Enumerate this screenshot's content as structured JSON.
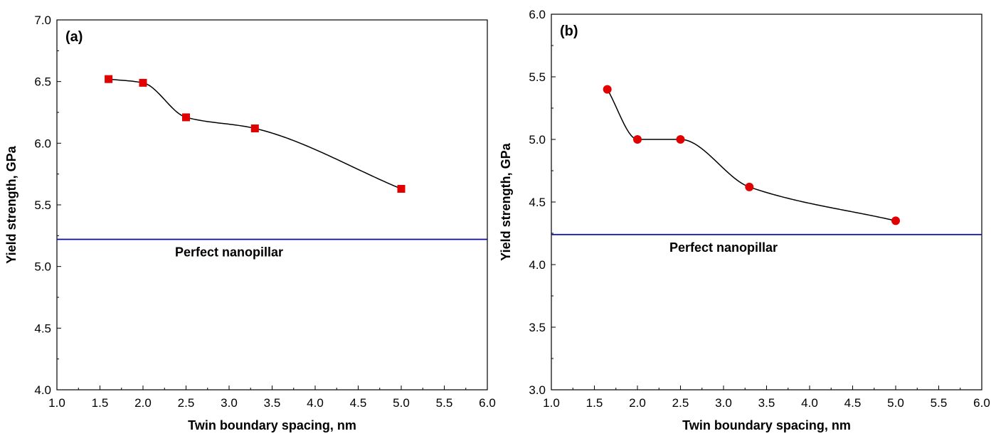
{
  "chart_data": [
    {
      "type": "scatter",
      "panel_label": "(a)",
      "xlabel": "Twin boundary spacing, nm",
      "ylabel": "Yield strength, GPa",
      "xlim": [
        1.0,
        6.0
      ],
      "ylim": [
        4.0,
        7.0
      ],
      "xticks": [
        "1.0",
        "1.5",
        "2.0",
        "2.5",
        "3.0",
        "3.5",
        "4.0",
        "4.5",
        "5.0",
        "5.5",
        "6.0"
      ],
      "yticks": [
        "4.0",
        "4.5",
        "5.0",
        "5.5",
        "6.0",
        "6.5",
        "7.0"
      ],
      "grid": false,
      "marker": "square",
      "marker_color": "#e00000",
      "fit_color": "#000000",
      "series": [
        {
          "x": [
            1.6,
            2.0,
            2.5,
            3.3,
            5.0
          ],
          "y": [
            6.52,
            6.49,
            6.21,
            6.12,
            5.63
          ]
        }
      ],
      "reference_line": {
        "y": 5.22,
        "label": "Perfect nanopillar",
        "color": "#0a0aa0"
      }
    },
    {
      "type": "scatter",
      "panel_label": "(b)",
      "xlabel": "Twin boundary spacing, nm",
      "ylabel": "Yield strength, GPa",
      "xlim": [
        1.0,
        6.0
      ],
      "ylim": [
        3.0,
        6.0
      ],
      "xticks": [
        "1.0",
        "1.5",
        "2.0",
        "2.5",
        "3.0",
        "3.5",
        "4.0",
        "4.5",
        "5.0",
        "5.5",
        "6.0"
      ],
      "yticks": [
        "3.0",
        "3.5",
        "4.0",
        "4.5",
        "5.0",
        "5.5",
        "6.0"
      ],
      "grid": false,
      "marker": "circle",
      "marker_color": "#e00000",
      "fit_color": "#000000",
      "series": [
        {
          "x": [
            1.65,
            2.0,
            2.5,
            3.3,
            5.0
          ],
          "y": [
            5.4,
            5.0,
            5.0,
            4.62,
            4.35
          ]
        }
      ],
      "reference_line": {
        "y": 4.24,
        "label": "Perfect nanopillar",
        "color": "#0a0aa0"
      }
    }
  ]
}
